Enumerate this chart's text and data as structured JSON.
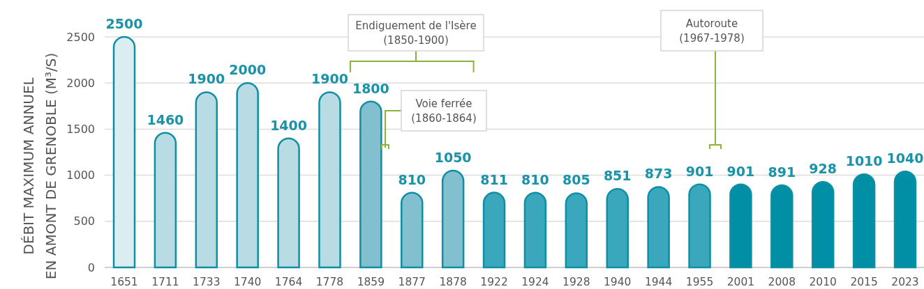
{
  "chart_data": {
    "type": "bar",
    "ylabel": "DÉBIT MAXIMUM ANNUEL\nEN AMONT DE GRENOBLE (M³/S)",
    "categories": [
      "1651",
      "1711",
      "1733",
      "1740",
      "1764",
      "1778",
      "1859",
      "1877",
      "1878",
      "1922",
      "1924",
      "1928",
      "1940",
      "1944",
      "1955",
      "2001",
      "2008",
      "2010",
      "2015",
      "2023"
    ],
    "values": [
      2500,
      1460,
      1900,
      2000,
      1400,
      1900,
      1800,
      810,
      1050,
      811,
      810,
      805,
      851,
      873,
      901,
      901,
      891,
      928,
      1010,
      1040
    ],
    "colors": [
      "#daedf1",
      "#b9dbe3",
      "#b9dbe3",
      "#b9dbe3",
      "#b9dbe3",
      "#b9dbe3",
      "#82bfcf",
      "#82bfcf",
      "#82bfcf",
      "#3ba7bc",
      "#3ba7bc",
      "#3ba7bc",
      "#3ba7bc",
      "#3ba7bc",
      "#3ba7bc",
      "#008fa5",
      "#008fa5",
      "#008fa5",
      "#008fa5",
      "#008fa5"
    ],
    "ylim": [
      0,
      2500
    ],
    "yticks": [
      0,
      500,
      1000,
      1500,
      2000,
      2500
    ],
    "grid": "y",
    "data_labels": true,
    "annotations": [
      "Endiguement de l'Isère\n(1850-1900)",
      "Voie ferrée\n(1860-1864)",
      "Autoroute\n(1967-1978)"
    ]
  }
}
